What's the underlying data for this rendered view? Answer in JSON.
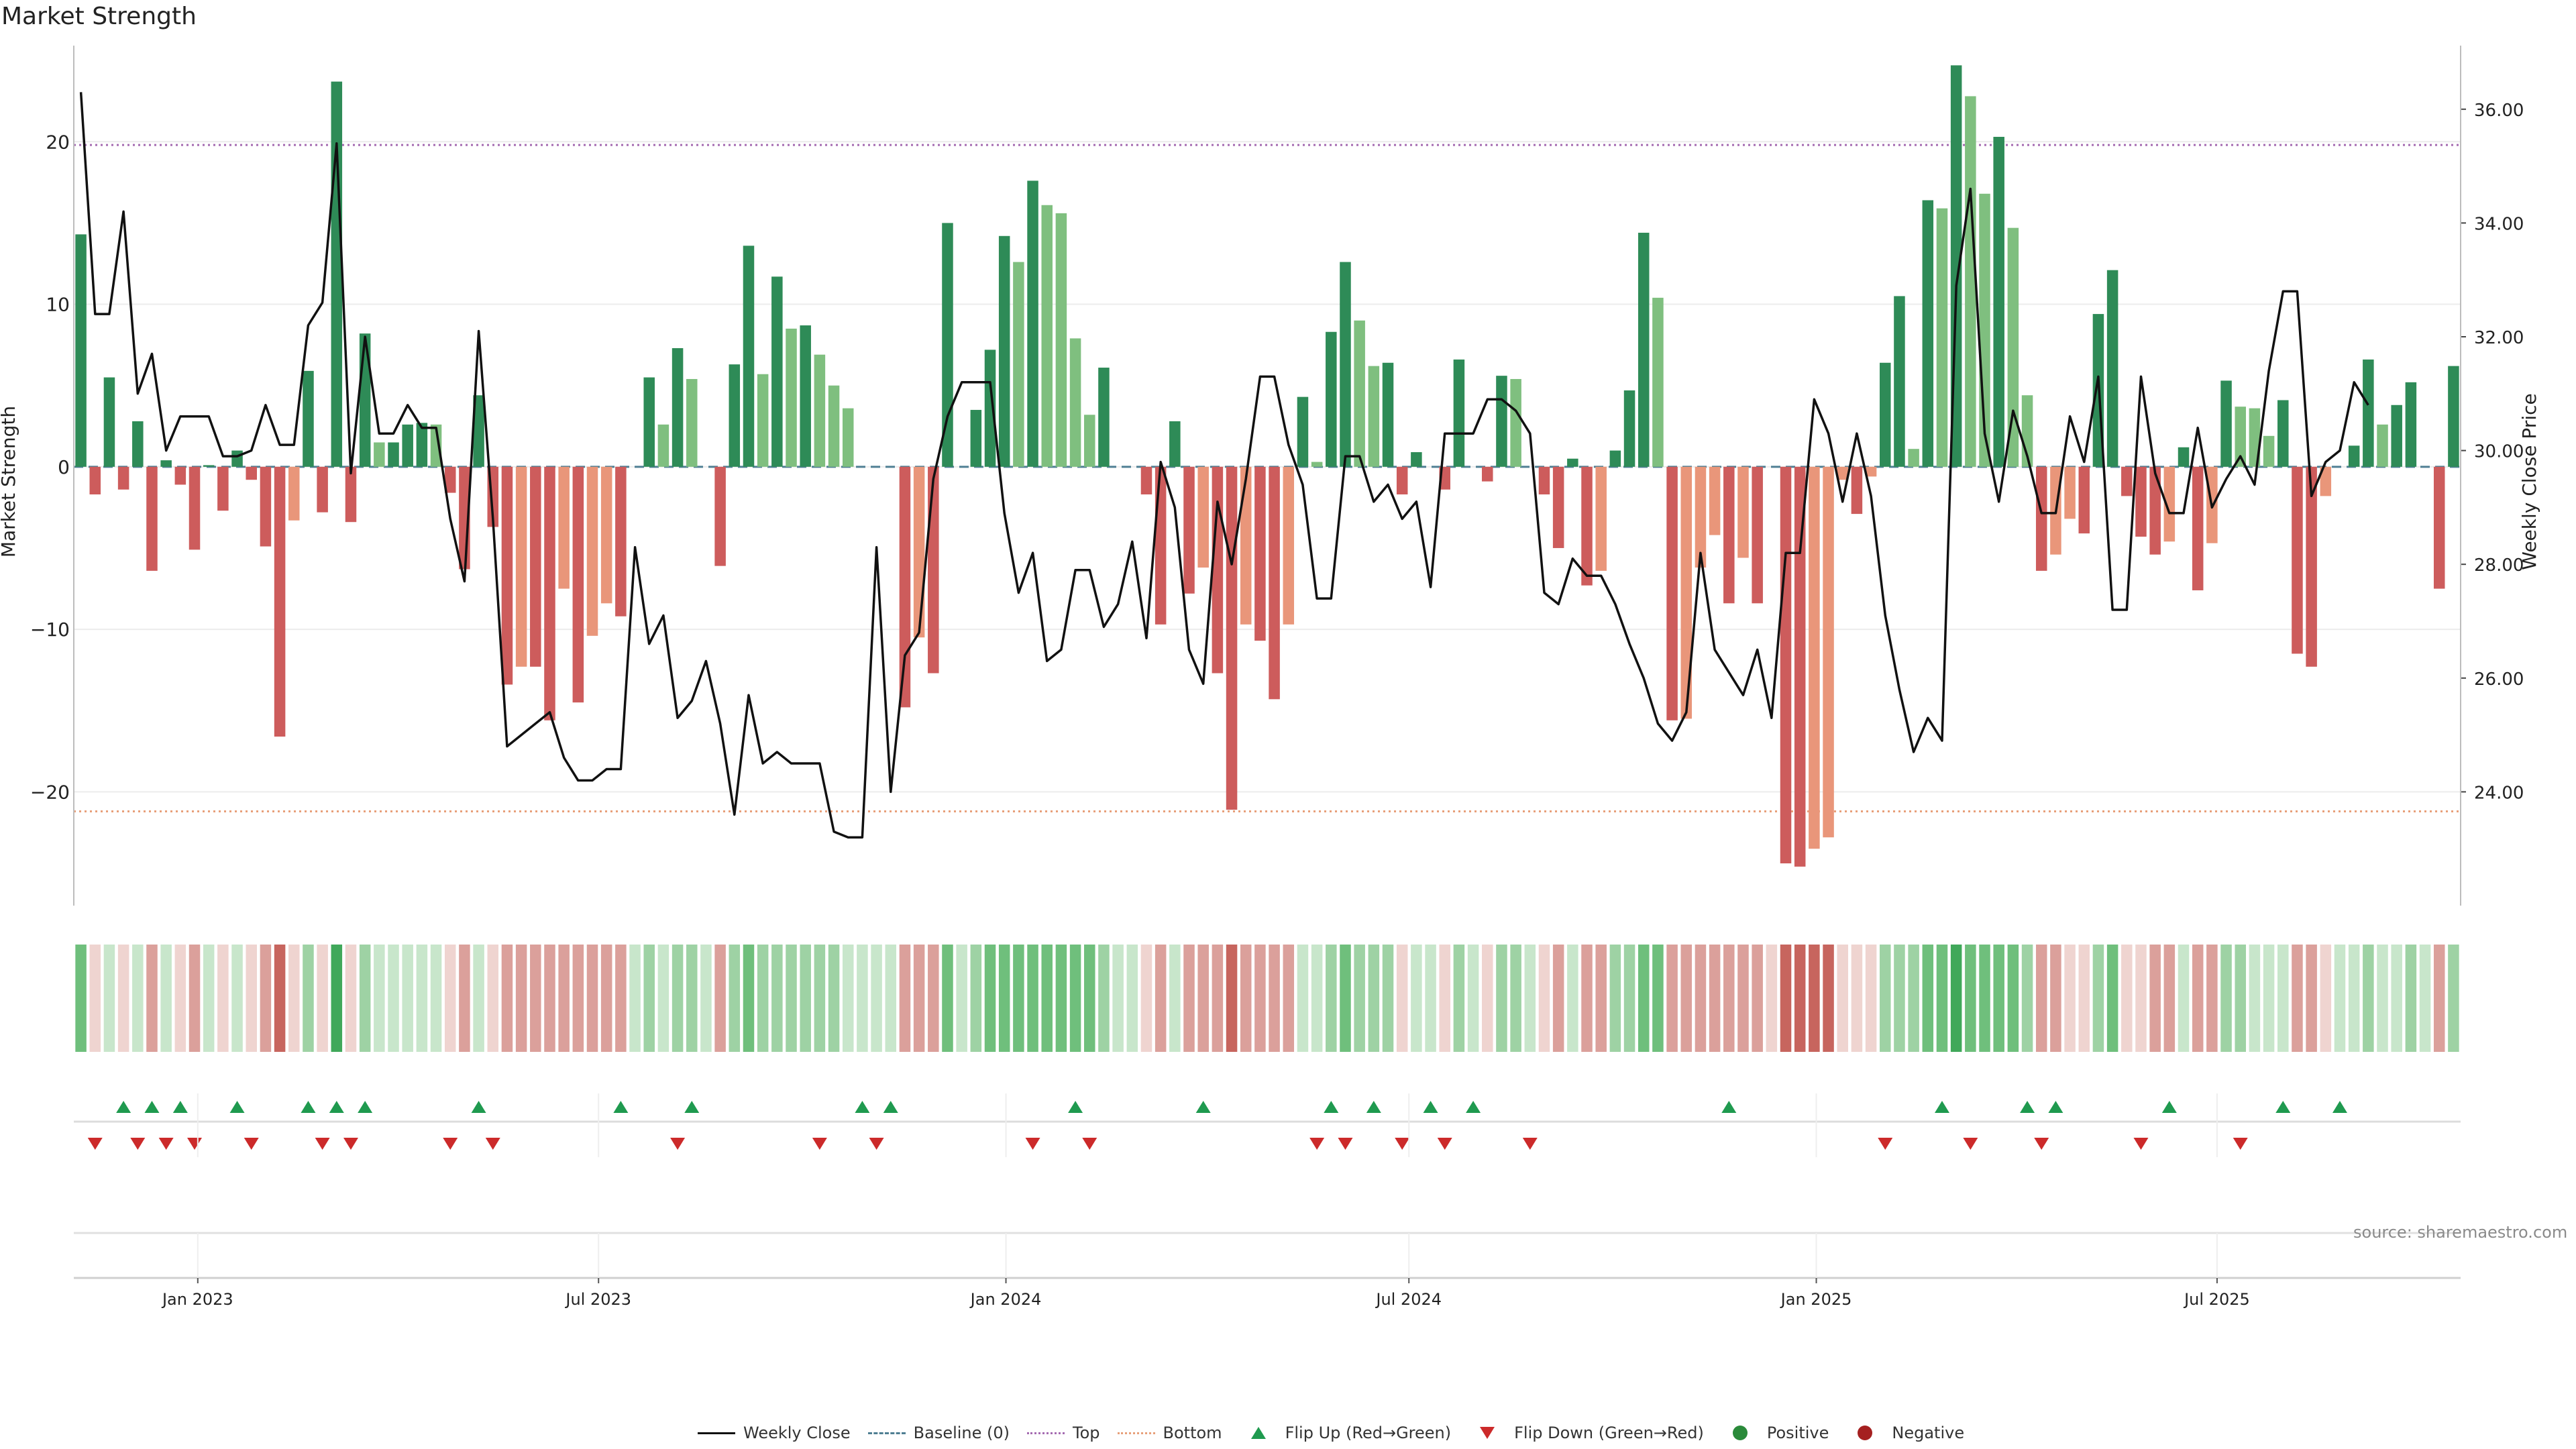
{
  "title": "Market Strength",
  "source_note": "source: sharemaestro.com",
  "legend": {
    "weekly_close": "Weekly Close",
    "baseline": "Baseline (0)",
    "top": "Top",
    "bottom": "Bottom",
    "flip_up": "Flip Up (Red→Green)",
    "flip_down": "Flip Down (Green→Red)",
    "positive": "Positive",
    "negative": "Negative"
  },
  "colors": {
    "green_dark": "#2e8b57",
    "green_light": "#7fbf7f",
    "red_dark": "#cd5c5c",
    "red_light": "#e9967a",
    "close_line": "#111111",
    "baseline": "#4f7f93",
    "top_line": "#a56bb1",
    "bottom_line": "#e8a07a",
    "flip_up": "#1f9a4f",
    "flip_down": "#cc2a2a"
  },
  "chart_data": {
    "type": "bar",
    "title": "Market Strength",
    "ylabel": "Market Strength",
    "y2label": "Weekly Close Price",
    "ylim": [
      -27,
      25.5
    ],
    "y2lim": [
      22.0,
      37.0
    ],
    "yticks": [
      -20,
      -10,
      0,
      10,
      20
    ],
    "ytick_labels": [
      "−20",
      "−10",
      "0",
      "10",
      "20"
    ],
    "y2ticks": [
      24,
      26,
      28,
      30,
      32,
      34,
      36
    ],
    "y2tick_labels": [
      "24.00",
      "26.00",
      "28.00",
      "30.00",
      "32.00",
      "34.00",
      "36.00"
    ],
    "top_level": 19.8,
    "bottom_level": -21.2,
    "baseline": 0,
    "x_start": "2022-11-06",
    "x_end": "2025-10-19",
    "xticks": [
      "2023-01-01",
      "2023-07-01",
      "2024-01-01",
      "2024-07-01",
      "2025-01-01",
      "2025-07-01"
    ],
    "xtick_labels": [
      "Jan 2023",
      "Jul 2023",
      "Jan 2024",
      "Jul 2024",
      "Jan 2025",
      "Jul 2025"
    ],
    "strength": [
      14.3,
      -1.7,
      5.5,
      -1.4,
      2.8,
      -6.4,
      0.4,
      -1.1,
      -5.1,
      0.1,
      -2.7,
      1.0,
      -0.8,
      -4.9,
      -16.6,
      -3.3,
      5.9,
      -2.8,
      23.7,
      -3.4,
      8.2,
      1.5,
      1.5,
      2.6,
      2.7,
      2.6,
      -1.6,
      -6.3,
      4.4,
      -3.7,
      -13.4,
      -12.3,
      -12.3,
      -15.6,
      -7.5,
      -14.5,
      -10.4,
      -8.4,
      -9.2,
      0.0,
      5.5,
      2.6,
      7.3,
      5.4,
      0.0,
      -6.1,
      6.3,
      13.6,
      5.7,
      11.7,
      8.5,
      8.7,
      6.9,
      5.0,
      3.6,
      0.0,
      0.0,
      0.0,
      -14.8,
      -10.5,
      -12.7,
      15.0,
      0.0,
      3.5,
      7.2,
      14.2,
      12.6,
      17.6,
      16.1,
      15.6,
      7.9,
      3.2,
      6.1,
      0.0,
      0.0,
      -1.7,
      -9.7,
      2.8,
      -7.8,
      -6.2,
      -12.7,
      -21.1,
      -9.7,
      -10.7,
      -14.3,
      -9.7,
      4.3,
      0.3,
      8.3,
      12.6,
      9.0,
      6.2,
      6.4,
      -1.7,
      0.9,
      0.0,
      -1.4,
      6.6,
      0.0,
      -0.9,
      5.6,
      5.4,
      0.0,
      -1.7,
      -5.0,
      0.5,
      -7.3,
      -6.4,
      1.0,
      4.7,
      14.4,
      10.4,
      -15.6,
      -15.5,
      -6.2,
      -4.2,
      -8.4,
      -5.6,
      -8.4,
      0.0,
      -24.4,
      -24.6,
      -23.5,
      -22.8,
      -0.8,
      -2.9,
      -0.6,
      6.4,
      10.5,
      1.1,
      16.4,
      15.9,
      24.7,
      22.8,
      16.8,
      20.3,
      14.7,
      4.4,
      -6.4,
      -5.4,
      -3.2,
      -4.1,
      9.4,
      12.1,
      -1.8,
      -4.3,
      -5.4,
      -4.6,
      1.2,
      -7.6,
      -4.7,
      5.3,
      3.7,
      3.6,
      1.9,
      4.1,
      -11.5,
      -12.3,
      -1.8,
      0.0,
      1.3,
      6.6,
      2.6,
      3.8,
      5.2,
      0.0,
      -7.5,
      6.2
    ],
    "close": [
      36.3,
      32.4,
      32.4,
      34.2,
      31.0,
      31.7,
      30.0,
      30.6,
      30.6,
      30.6,
      29.9,
      29.9,
      30.0,
      30.8,
      30.1,
      30.1,
      32.2,
      32.6,
      35.4,
      29.6,
      32.0,
      30.3,
      30.3,
      30.8,
      30.4,
      30.4,
      28.8,
      27.7,
      32.1,
      28.8,
      24.8,
      25.0,
      25.2,
      25.4,
      24.6,
      24.2,
      24.2,
      24.4,
      24.4,
      28.3,
      26.6,
      27.1,
      25.3,
      25.6,
      26.3,
      25.2,
      23.6,
      25.7,
      24.5,
      24.7,
      24.5,
      24.5,
      24.5,
      23.3,
      23.2,
      23.2,
      28.3,
      24.0,
      26.4,
      26.8,
      29.5,
      30.6,
      31.2,
      31.2,
      31.2,
      28.9,
      27.5,
      28.2,
      26.3,
      26.5,
      27.9,
      27.9,
      26.9,
      27.3,
      28.4,
      26.7,
      29.8,
      29.0,
      26.5,
      25.9,
      29.1,
      28.0,
      29.5,
      31.3,
      31.3,
      30.1,
      29.4,
      27.4,
      27.4,
      29.9,
      29.9,
      29.1,
      29.4,
      28.8,
      29.1,
      27.6,
      30.3,
      30.3,
      30.3,
      30.9,
      30.9,
      30.7,
      30.3,
      27.5,
      27.3,
      28.1,
      27.8,
      27.8,
      27.3,
      26.6,
      26.0,
      25.2,
      24.9,
      25.4,
      28.2,
      26.5,
      26.1,
      25.7,
      26.5,
      25.3,
      28.2,
      28.2,
      30.9,
      30.3,
      29.1,
      30.3,
      29.2,
      27.1,
      25.8,
      24.7,
      25.3,
      24.9,
      32.9,
      34.6,
      30.3,
      29.1,
      30.7,
      29.9,
      28.9,
      28.9,
      30.6,
      29.8,
      31.3,
      27.2,
      27.2,
      31.3,
      29.6,
      28.9,
      28.9,
      30.4,
      29.0,
      29.5,
      29.9,
      29.4,
      31.4,
      32.8,
      32.8,
      29.2,
      29.8,
      30.0,
      31.2,
      30.8
    ],
    "heat": [
      3,
      -1,
      1,
      -1,
      1,
      -2,
      1,
      -1,
      -2,
      1,
      -1,
      1,
      -1,
      -2,
      -3,
      -1,
      2,
      -1,
      4,
      -1,
      2,
      1,
      1,
      1,
      1,
      1,
      -1,
      -2,
      1,
      -1,
      -2,
      -2,
      -2,
      -2,
      -2,
      -2,
      -2,
      -2,
      -2,
      1,
      2,
      1,
      2,
      2,
      1,
      -2,
      2,
      3,
      2,
      2,
      2,
      2,
      2,
      2,
      1,
      1,
      1,
      1,
      -2,
      -2,
      -2,
      3,
      1,
      2,
      3,
      3,
      3,
      3,
      3,
      3,
      3,
      3,
      2,
      1,
      1,
      -1,
      -2,
      1,
      -2,
      -2,
      -2,
      -3,
      -2,
      -2,
      -2,
      -2,
      1,
      1,
      2,
      3,
      2,
      2,
      2,
      -1,
      1,
      1,
      -1,
      2,
      1,
      -1,
      2,
      2,
      1,
      -1,
      -2,
      1,
      -2,
      -2,
      2,
      2,
      3,
      3,
      -2,
      -2,
      -2,
      -2,
      -2,
      -2,
      -2,
      -1,
      -3,
      -3,
      -3,
      -3,
      -1,
      -1,
      -1,
      2,
      2,
      2,
      3,
      3,
      4,
      3,
      3,
      3,
      3,
      2,
      -2,
      -2,
      -1,
      -1,
      2,
      3,
      -1,
      -1,
      -2,
      -2,
      1,
      -2,
      -2,
      2,
      2,
      1,
      1,
      1,
      -2,
      -2,
      -1,
      1,
      1,
      2,
      1,
      1,
      2,
      1,
      -2,
      2
    ],
    "flip_up_weeks": [
      3,
      5,
      7,
      11,
      16,
      18,
      20,
      28,
      38,
      43,
      55,
      57,
      70,
      79,
      88,
      91,
      95,
      98,
      116,
      131,
      137,
      139,
      147,
      155,
      159
    ],
    "flip_down_weeks": [
      1,
      4,
      6,
      8,
      12,
      17,
      19,
      26,
      29,
      42,
      52,
      56,
      67,
      71,
      87,
      89,
      93,
      96,
      102,
      127,
      133,
      138,
      145,
      152
    ],
    "series": [
      {
        "name": "Market Strength",
        "values_key": "strength"
      },
      {
        "name": "Weekly Close",
        "values_key": "close",
        "axis": "right"
      }
    ]
  }
}
